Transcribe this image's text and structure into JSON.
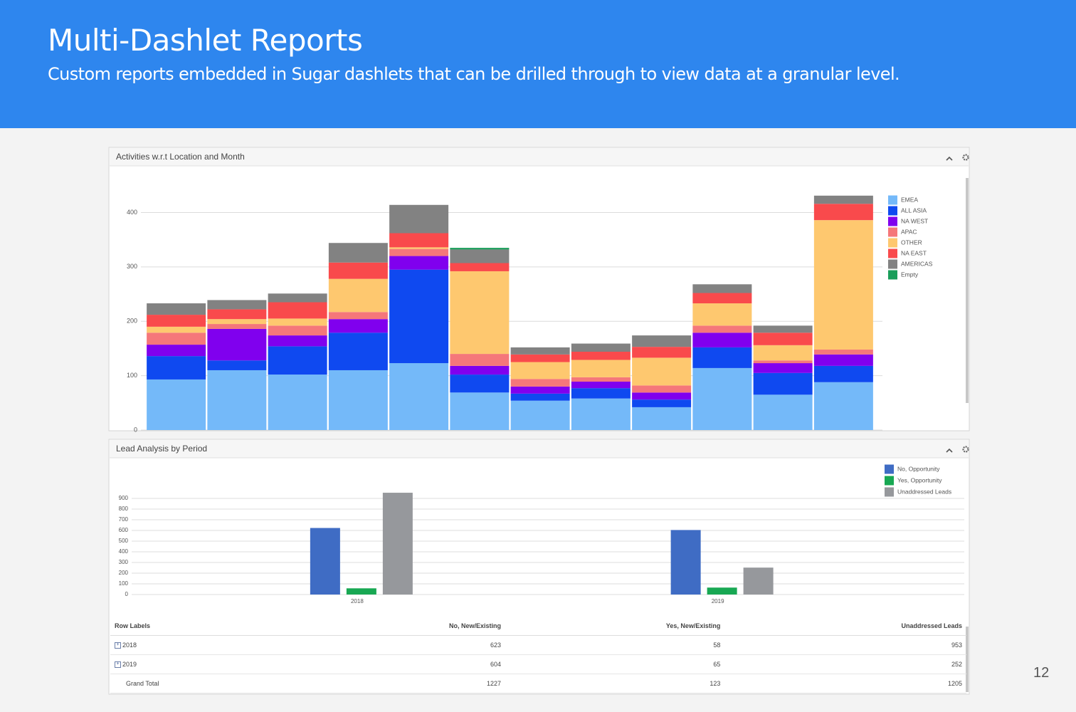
{
  "header": {
    "title": "Multi-Dashlet Reports",
    "subtitle": "Custom reports embedded in Sugar dashlets that can be drilled through to view data at a granular level."
  },
  "page_number": "12",
  "chart_data": [
    {
      "type": "bar",
      "stacked": true,
      "title": "Activities w.r.t Location and Month",
      "categories": [
        null,
        null,
        null,
        null,
        null,
        null,
        null,
        null,
        null,
        null,
        null,
        null
      ],
      "series": [
        {
          "name": "EMEA",
          "color": "#74b9f9",
          "values": [
            93,
            110,
            102,
            110,
            123,
            69,
            54,
            58,
            42,
            114,
            65,
            88
          ]
        },
        {
          "name": "ALL ASIA",
          "color": "#0f49f0",
          "values": [
            43,
            18,
            52,
            69,
            172,
            33,
            13,
            19,
            14,
            38,
            40,
            30
          ]
        },
        {
          "name": "NA WEST",
          "color": "#8000ee",
          "values": [
            21,
            58,
            20,
            25,
            25,
            16,
            13,
            12,
            13,
            27,
            18,
            21
          ]
        },
        {
          "name": "APAC",
          "color": "#f5777a",
          "values": [
            22,
            9,
            18,
            13,
            13,
            22,
            14,
            8,
            13,
            13,
            5,
            9
          ]
        },
        {
          "name": "OTHER",
          "color": "#fec86f",
          "values": [
            11,
            9,
            13,
            61,
            3,
            152,
            31,
            32,
            51,
            41,
            28,
            238
          ]
        },
        {
          "name": "NA EAST",
          "color": "#f94a4c",
          "values": [
            22,
            18,
            30,
            30,
            26,
            15,
            14,
            15,
            20,
            19,
            23,
            30
          ]
        },
        {
          "name": "AMERICAS",
          "color": "#828282",
          "values": [
            21,
            17,
            16,
            36,
            52,
            25,
            13,
            15,
            21,
            16,
            13,
            15
          ]
        },
        {
          "name": "Empty",
          "color": "#1a9e5a",
          "values": [
            0,
            0,
            0,
            0,
            0,
            3,
            0,
            0,
            0,
            0,
            0,
            0
          ]
        }
      ],
      "ylim": [
        0,
        470
      ],
      "yticks": [
        0,
        100,
        200,
        300,
        400
      ],
      "grid": true
    },
    {
      "type": "bar",
      "stacked": false,
      "title": "Lead Analysis by Period",
      "categories": [
        "2018",
        "2019"
      ],
      "series": [
        {
          "name": "No, Opportunity",
          "color": "#3f6cc4",
          "values": [
            623,
            604
          ]
        },
        {
          "name": "Yes, Opportunity",
          "color": "#18a853",
          "values": [
            58,
            65
          ]
        },
        {
          "name": "Unaddressed Leads",
          "color": "#96989c",
          "values": [
            953,
            252
          ]
        }
      ],
      "ylim": [
        0,
        960
      ],
      "yticks": [
        0,
        100,
        200,
        300,
        400,
        500,
        600,
        700,
        800,
        900
      ],
      "grid": true
    }
  ],
  "table": {
    "columns": [
      "Row Labels",
      "No, New/Existing",
      "Yes, New/Existing",
      "Unaddressed Leads"
    ],
    "rows": [
      [
        "2018",
        623,
        58,
        953
      ],
      [
        "2019",
        604,
        65,
        252
      ],
      [
        "Grand Total",
        1227,
        123,
        1205
      ]
    ]
  }
}
